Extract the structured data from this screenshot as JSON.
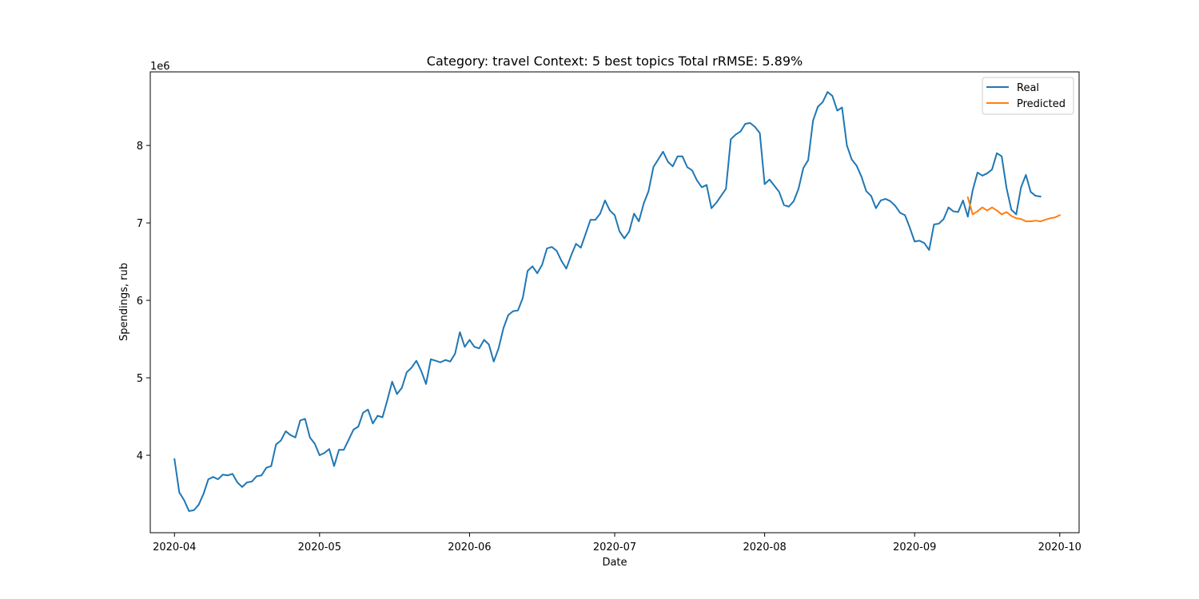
{
  "chart_data": {
    "type": "line",
    "title": "Category: travel    Context: 5 best topics    Total rRMSE: 5.89%",
    "xlabel": "Date",
    "ylabel": "Spendings, rub",
    "y_offset_label": "1e6",
    "x_tick_labels": [
      "2020-04",
      "2020-05",
      "2020-06",
      "2020-07",
      "2020-08",
      "2020-09",
      "2020-10"
    ],
    "y_tick_labels": [
      "4",
      "5",
      "6",
      "7",
      "8"
    ],
    "y_ticks": [
      4,
      5,
      6,
      7,
      8
    ],
    "x_range": [
      "2020-03-27",
      "2020-10-05"
    ],
    "ylim": [
      3.0,
      8.95
    ],
    "legend_position": "top-right",
    "grid": false,
    "series": [
      {
        "name": "Real",
        "color": "#1f77b4",
        "start_date": "2020-04-01",
        "values": [
          3.95,
          3.52,
          3.42,
          3.28,
          3.29,
          3.36,
          3.5,
          3.69,
          3.72,
          3.69,
          3.75,
          3.74,
          3.76,
          3.65,
          3.59,
          3.65,
          3.66,
          3.73,
          3.74,
          3.84,
          3.86,
          4.14,
          4.19,
          4.31,
          4.26,
          4.23,
          4.45,
          4.47,
          4.23,
          4.15,
          4.0,
          4.03,
          4.08,
          3.86,
          4.07,
          4.07,
          4.2,
          4.33,
          4.37,
          4.55,
          4.59,
          4.41,
          4.51,
          4.49,
          4.71,
          4.95,
          4.79,
          4.87,
          5.07,
          5.13,
          5.22,
          5.09,
          4.92,
          5.24,
          5.22,
          5.2,
          5.23,
          5.21,
          5.31,
          5.59,
          5.4,
          5.49,
          5.4,
          5.38,
          5.49,
          5.43,
          5.21,
          5.38,
          5.64,
          5.81,
          5.86,
          5.87,
          6.03,
          6.38,
          6.44,
          6.35,
          6.46,
          6.67,
          6.69,
          6.64,
          6.51,
          6.41,
          6.58,
          6.73,
          6.68,
          6.86,
          7.04,
          7.04,
          7.12,
          7.29,
          7.16,
          7.1,
          6.89,
          6.8,
          6.89,
          7.12,
          7.02,
          7.25,
          7.41,
          7.72,
          7.82,
          7.92,
          7.79,
          7.73,
          7.86,
          7.86,
          7.72,
          7.68,
          7.55,
          7.46,
          7.49,
          7.19,
          7.26,
          7.35,
          7.44,
          8.08,
          8.14,
          8.18,
          8.28,
          8.29,
          8.24,
          8.16,
          7.5,
          7.56,
          7.48,
          7.4,
          7.23,
          7.21,
          7.28,
          7.44,
          7.71,
          7.81,
          8.32,
          8.5,
          8.56,
          8.69,
          8.64,
          8.45,
          8.49,
          8.0,
          7.82,
          7.74,
          7.6,
          7.41,
          7.35,
          7.19,
          7.29,
          7.31,
          7.28,
          7.22,
          7.13,
          7.1,
          6.94,
          6.76,
          6.77,
          6.74,
          6.65,
          6.98,
          6.99,
          7.05,
          7.2,
          7.15,
          7.14,
          7.29,
          7.08,
          7.42,
          7.65,
          7.61,
          7.64,
          7.69,
          7.9,
          7.86,
          7.45,
          7.17,
          7.11,
          7.46,
          7.62,
          7.4,
          7.35,
          7.34
        ]
      },
      {
        "name": "Predicted",
        "color": "#ff7f0e",
        "start_date": "2020-09-12",
        "values": [
          7.33,
          7.11,
          7.15,
          7.2,
          7.16,
          7.2,
          7.16,
          7.11,
          7.14,
          7.09,
          7.06,
          7.05,
          7.02,
          7.02,
          7.03,
          7.02,
          7.04,
          7.06,
          7.07,
          7.1
        ]
      }
    ]
  }
}
